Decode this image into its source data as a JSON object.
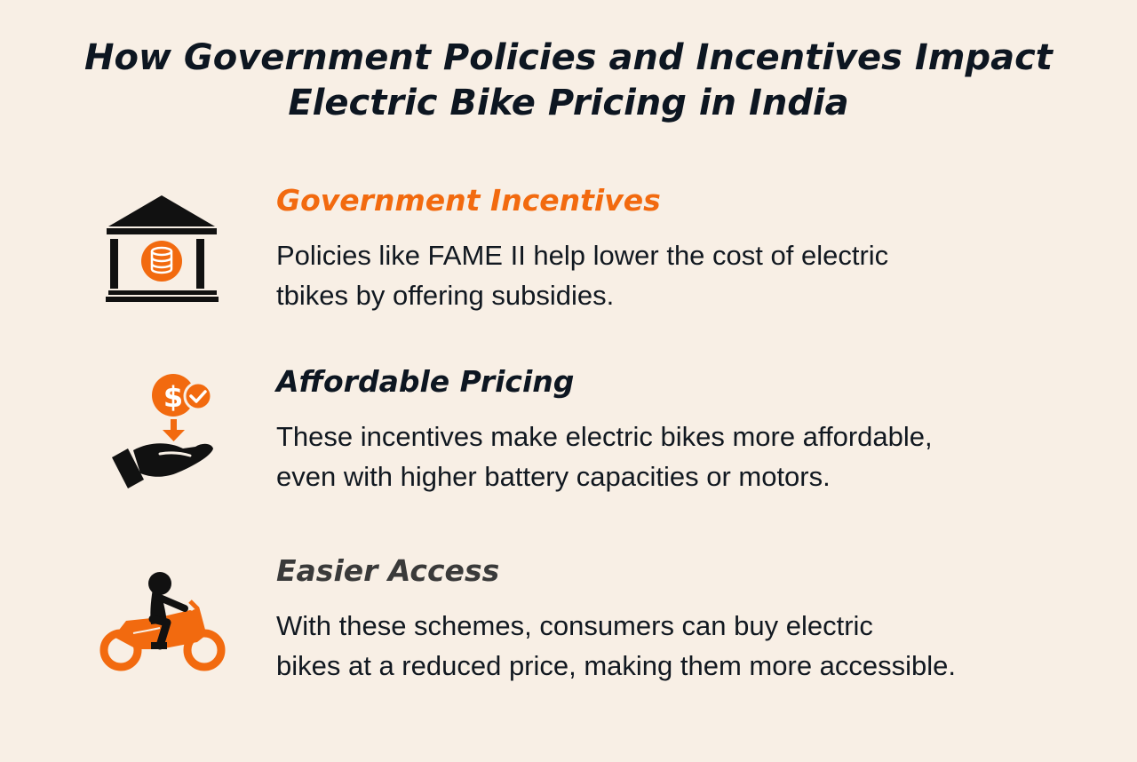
{
  "title": {
    "line1": "How Government Policies and Incentives Impact",
    "line2": "Electric Bike Pricing in India"
  },
  "sections": [
    {
      "heading": "Government Incentives",
      "lines": [
        "Policies like FAME II help lower the cost of electric",
        "tbikes by offering subsidies."
      ],
      "icon": "bank-icon",
      "heading_color": "#f26a0f"
    },
    {
      "heading": "Affordable Pricing",
      "lines": [
        "These incentives make electric bikes more affordable,",
        "even with higher battery capacities or motors."
      ],
      "icon": "hand-money-icon",
      "heading_color": "#0d1621"
    },
    {
      "heading": "Easier Access",
      "lines": [
        "With these schemes, consumers can buy electric",
        "bikes at a reduced price, making them more accessible."
      ],
      "icon": "motorcycle-rider-icon",
      "heading_color": "#3a3a3a"
    }
  ],
  "colors": {
    "background": "#f8efe5",
    "accent": "#f26a0f",
    "dark": "#0d1621"
  }
}
